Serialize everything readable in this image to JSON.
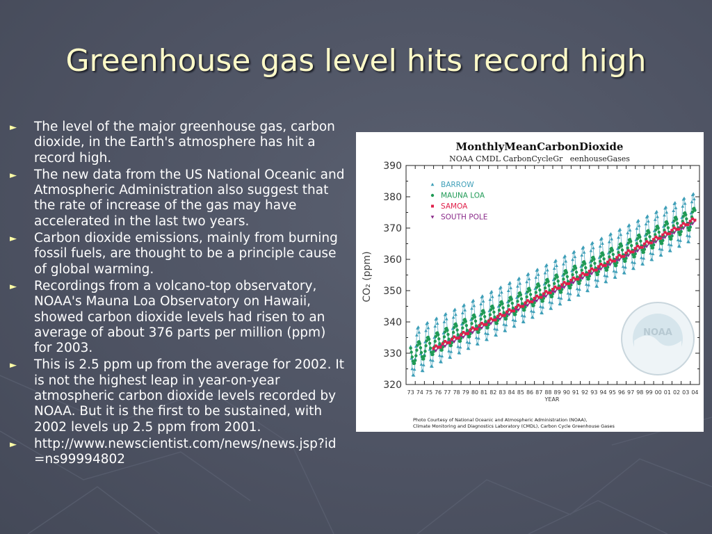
{
  "slide": {
    "title": "Greenhouse gas level hits record high",
    "bullet_glyph": "►",
    "bullets": [
      "The level of the major greenhouse gas, carbon dioxide, in the Earth's atmosphere has hit a record high.",
      "The new data from the US National Oceanic and Atmospheric Administration also suggest that the rate of increase of the gas may have accelerated in the last two years.",
      "Carbon dioxide emissions, mainly from burning fossil fuels, are thought to be a principle cause of global warming.",
      "Recordings from a volcano-top observatory, NOAA's Mauna Loa Observatory on Hawaii, showed carbon dioxide levels had risen to an average of about 376 parts per million (ppm) for 2003.",
      "This is 2.5 ppm up from the average for 2002. It is not the highest leap in year-on-year atmospheric carbon dioxide levels recorded by NOAA. But it is the first to be sustained, with 2002 levels up 2.5 ppm from 2001.",
      "http://www.newscientist.com/news/news.jsp?id=ns99994802"
    ]
  },
  "chart_data": {
    "type": "line",
    "title": "MonthlyMeanCarbonDioxide",
    "subtitle": "NOAA CMDL CarbonCycleGr   eenhouseGases",
    "xlabel": "YEAR",
    "ylabel": "CO₂ (ppm)",
    "xlim": [
      1973,
      2004
    ],
    "ylim": [
      320,
      390
    ],
    "yticks": [
      320,
      330,
      340,
      350,
      360,
      370,
      380,
      390
    ],
    "xtick_labels": [
      "73",
      "74",
      "75",
      "76",
      "77",
      "78",
      "79",
      "80",
      "81",
      "82",
      "83",
      "84",
      "85",
      "86",
      "87",
      "88",
      "89",
      "90",
      "91",
      "92",
      "93",
      "94",
      "95",
      "96",
      "97",
      "98",
      "99",
      "00",
      "01",
      "02",
      "03",
      "04"
    ],
    "legend_position": "top-left",
    "series": [
      {
        "name": "BARROW",
        "color": "#3f9fb8",
        "marker": "triangle",
        "start": 1973.5,
        "end": 2004.5,
        "v0": 330.5,
        "slope": 1.42,
        "accel": 0.0,
        "amp": 7.5,
        "phase": 0.3
      },
      {
        "name": "MAUNA LOA",
        "color": "#1f9a55",
        "marker": "circle",
        "start": 1973.5,
        "end": 2004.5,
        "v0": 330.0,
        "slope": 1.42,
        "accel": 0.0,
        "amp": 3.2,
        "phase": 0.38
      },
      {
        "name": "SAMOA",
        "color": "#e0204a",
        "marker": "square",
        "start": 1976.0,
        "end": 2004.5,
        "v0": 328.5,
        "slope": 1.45,
        "accel": 0.0,
        "amp": 0.6,
        "phase": 0.2
      },
      {
        "name": "SOUTH POLE",
        "color": "#8a2b8a",
        "marker": "triangle-down",
        "start": 1976.0,
        "end": 2004.5,
        "v0": 328.0,
        "slope": 1.45,
        "accel": 0.0,
        "amp": 0.5,
        "phase": 0.7
      }
    ],
    "credit": [
      "Photo Courtesy of National Oceanic and Atmospheric Administration (NOAA),",
      "Climate Monitoring and Diagnostics Laboratory (CMDL), Carbon Cycle Greenhouse Gases"
    ],
    "watermark": "NOAA"
  },
  "colors": {
    "title": "#fffbc8",
    "bullet_text": "#ffffff",
    "bullet_mark": "#ffffa6",
    "background": "#4e5363"
  }
}
